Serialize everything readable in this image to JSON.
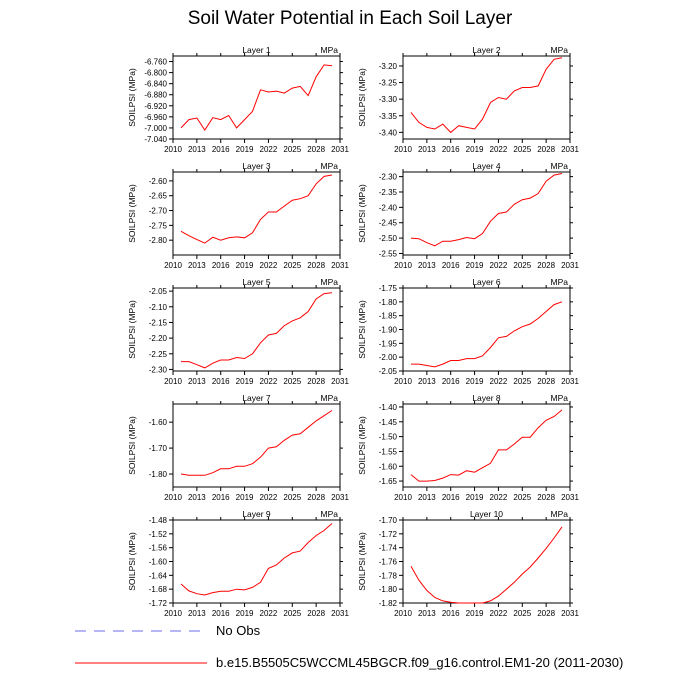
{
  "title": "Soil Water Potential in Each Soil Layer",
  "colors": {
    "model_line": "#ff0000",
    "noobs_line": "#8a8af0",
    "axis": "#000000"
  },
  "legend": {
    "no_obs": "No Obs",
    "model": "b.e15.B5505C5WCCML45BGCR.f09_g16.control.EM1-20 (2011-2030)"
  },
  "chart_data": [
    {
      "type": "line",
      "title": "Layer 1",
      "units": "MPa",
      "ylabel": "SOILPSI  (MPa)",
      "xlim": [
        2010,
        2031
      ],
      "ylim": [
        -7.04,
        -6.74
      ],
      "yticks": [
        -7.04,
        -7.0,
        -6.96,
        -6.92,
        -6.88,
        -6.84,
        -6.8,
        -6.76
      ],
      "ytick_labels": [
        "-7.040",
        "-7.000",
        "-6.960",
        "-6.920",
        "-6.880",
        "-6.840",
        "-6.800",
        "-6.760"
      ],
      "xticks": [
        2010,
        2013,
        2016,
        2019,
        2022,
        2025,
        2028,
        2031
      ],
      "xtick_labels": [
        "2010",
        "2013",
        "2016",
        "2019",
        "2022",
        "2025",
        "2028",
        "2031"
      ],
      "x": [
        2011,
        2012,
        2013,
        2014,
        2015,
        2016,
        2017,
        2018,
        2019,
        2020,
        2021,
        2022,
        2023,
        2024,
        2025,
        2026,
        2027,
        2028,
        2029,
        2030
      ],
      "y": [
        -7.0,
        -6.97,
        -6.964,
        -7.008,
        -6.963,
        -6.97,
        -6.955,
        -7.0,
        -6.97,
        -6.94,
        -6.862,
        -6.87,
        -6.867,
        -6.874,
        -6.856,
        -6.85,
        -6.883,
        -6.815,
        -6.772,
        -6.775
      ]
    },
    {
      "type": "line",
      "title": "Layer 2",
      "units": "MPa",
      "ylabel": "SOILPSI  (MPa)",
      "xlim": [
        2010,
        2031
      ],
      "ylim": [
        -3.42,
        -3.17
      ],
      "yticks": [
        -3.4,
        -3.35,
        -3.3,
        -3.25,
        -3.2
      ],
      "ytick_labels": [
        "-3.40",
        "-3.35",
        "-3.30",
        "-3.25",
        "-3.20"
      ],
      "xticks": [
        2010,
        2013,
        2016,
        2019,
        2022,
        2025,
        2028,
        2031
      ],
      "xtick_labels": [
        "2010",
        "2013",
        "2016",
        "2019",
        "2022",
        "2025",
        "2028",
        "2031"
      ],
      "x": [
        2011,
        2012,
        2013,
        2014,
        2015,
        2016,
        2017,
        2018,
        2019,
        2020,
        2021,
        2022,
        2023,
        2024,
        2025,
        2026,
        2027,
        2028,
        2029,
        2030
      ],
      "y": [
        -3.34,
        -3.37,
        -3.385,
        -3.39,
        -3.375,
        -3.4,
        -3.38,
        -3.385,
        -3.39,
        -3.36,
        -3.31,
        -3.295,
        -3.3,
        -3.275,
        -3.265,
        -3.265,
        -3.26,
        -3.21,
        -3.18,
        -3.175
      ]
    },
    {
      "type": "line",
      "title": "Layer 3",
      "units": "MPa",
      "ylabel": "SOILPSI  (MPa)",
      "xlim": [
        2010,
        2031
      ],
      "ylim": [
        -2.85,
        -2.57
      ],
      "yticks": [
        -2.8,
        -2.75,
        -2.7,
        -2.65,
        -2.6
      ],
      "ytick_labels": [
        "-2.80",
        "-2.75",
        "-2.70",
        "-2.65",
        "-2.60"
      ],
      "xticks": [
        2010,
        2013,
        2016,
        2019,
        2022,
        2025,
        2028,
        2031
      ],
      "xtick_labels": [
        "2010",
        "2013",
        "2016",
        "2019",
        "2022",
        "2025",
        "2028",
        "2031"
      ],
      "x": [
        2011,
        2012,
        2013,
        2014,
        2015,
        2016,
        2017,
        2018,
        2019,
        2020,
        2021,
        2022,
        2023,
        2024,
        2025,
        2026,
        2027,
        2028,
        2029,
        2030
      ],
      "y": [
        -2.77,
        -2.785,
        -2.798,
        -2.81,
        -2.79,
        -2.8,
        -2.792,
        -2.789,
        -2.792,
        -2.775,
        -2.73,
        -2.705,
        -2.705,
        -2.685,
        -2.665,
        -2.66,
        -2.65,
        -2.61,
        -2.585,
        -2.58
      ]
    },
    {
      "type": "line",
      "title": "Layer 4",
      "units": "MPa",
      "ylabel": "SOILPSI  (MPa)",
      "xlim": [
        2010,
        2031
      ],
      "ylim": [
        -2.555,
        -2.285
      ],
      "yticks": [
        -2.55,
        -2.5,
        -2.45,
        -2.4,
        -2.35,
        -2.3
      ],
      "ytick_labels": [
        "-2.55",
        "-2.50",
        "-2.45",
        "-2.40",
        "-2.35",
        "-2.30"
      ],
      "xticks": [
        2010,
        2013,
        2016,
        2019,
        2022,
        2025,
        2028,
        2031
      ],
      "xtick_labels": [
        "2010",
        "2013",
        "2016",
        "2019",
        "2022",
        "2025",
        "2028",
        "2031"
      ],
      "x": [
        2011,
        2012,
        2013,
        2014,
        2015,
        2016,
        2017,
        2018,
        2019,
        2020,
        2021,
        2022,
        2023,
        2024,
        2025,
        2026,
        2027,
        2028,
        2029,
        2030
      ],
      "y": [
        -2.5,
        -2.502,
        -2.515,
        -2.525,
        -2.51,
        -2.51,
        -2.505,
        -2.498,
        -2.502,
        -2.485,
        -2.445,
        -2.42,
        -2.415,
        -2.39,
        -2.375,
        -2.37,
        -2.355,
        -2.315,
        -2.295,
        -2.29
      ]
    },
    {
      "type": "line",
      "title": "Layer 5",
      "units": "MPa",
      "ylabel": "SOILPSI  (MPa)",
      "xlim": [
        2010,
        2031
      ],
      "ylim": [
        -2.305,
        -2.04
      ],
      "yticks": [
        -2.3,
        -2.25,
        -2.2,
        -2.15,
        -2.1,
        -2.05
      ],
      "ytick_labels": [
        "-2.30",
        "-2.25",
        "-2.20",
        "-2.15",
        "-2.10",
        "-2.05"
      ],
      "xticks": [
        2010,
        2013,
        2016,
        2019,
        2022,
        2025,
        2028,
        2031
      ],
      "xtick_labels": [
        "2010",
        "2013",
        "2016",
        "2019",
        "2022",
        "2025",
        "2028",
        "2031"
      ],
      "x": [
        2011,
        2012,
        2013,
        2014,
        2015,
        2016,
        2017,
        2018,
        2019,
        2020,
        2021,
        2022,
        2023,
        2024,
        2025,
        2026,
        2027,
        2028,
        2029,
        2030
      ],
      "y": [
        -2.275,
        -2.275,
        -2.285,
        -2.295,
        -2.28,
        -2.27,
        -2.27,
        -2.262,
        -2.265,
        -2.25,
        -2.215,
        -2.19,
        -2.185,
        -2.16,
        -2.145,
        -2.135,
        -2.115,
        -2.075,
        -2.058,
        -2.055
      ]
    },
    {
      "type": "line",
      "title": "Layer 6",
      "units": "MPa",
      "ylabel": "SOILPSI  (MPa)",
      "xlim": [
        2010,
        2031
      ],
      "ylim": [
        -2.05,
        -1.75
      ],
      "yticks": [
        -2.05,
        -2.0,
        -1.95,
        -1.9,
        -1.85,
        -1.8,
        -1.75
      ],
      "ytick_labels": [
        "-2.05",
        "-2.00",
        "-1.95",
        "-1.90",
        "-1.85",
        "-1.80",
        "-1.75"
      ],
      "xticks": [
        2010,
        2013,
        2016,
        2019,
        2022,
        2025,
        2028,
        2031
      ],
      "xtick_labels": [
        "2010",
        "2013",
        "2016",
        "2019",
        "2022",
        "2025",
        "2028",
        "2031"
      ],
      "x": [
        2011,
        2012,
        2013,
        2014,
        2015,
        2016,
        2017,
        2018,
        2019,
        2020,
        2021,
        2022,
        2023,
        2024,
        2025,
        2026,
        2027,
        2028,
        2029,
        2030
      ],
      "y": [
        -2.025,
        -2.025,
        -2.03,
        -2.035,
        -2.025,
        -2.012,
        -2.012,
        -2.005,
        -2.005,
        -1.995,
        -1.965,
        -1.93,
        -1.925,
        -1.905,
        -1.89,
        -1.88,
        -1.86,
        -1.835,
        -1.81,
        -1.8
      ]
    },
    {
      "type": "line",
      "title": "Layer 7",
      "units": "MPa",
      "ylabel": "SOILPSI  (MPa)",
      "xlim": [
        2010,
        2031
      ],
      "ylim": [
        -1.85,
        -1.53
      ],
      "yticks": [
        -1.8,
        -1.7,
        -1.6
      ],
      "ytick_labels": [
        "-1.80",
        "-1.70",
        "-1.60"
      ],
      "xticks": [
        2010,
        2013,
        2016,
        2019,
        2022,
        2025,
        2028,
        2031
      ],
      "xtick_labels": [
        "2010",
        "2013",
        "2016",
        "2019",
        "2022",
        "2025",
        "2028",
        "2031"
      ],
      "x": [
        2011,
        2012,
        2013,
        2014,
        2015,
        2016,
        2017,
        2018,
        2019,
        2020,
        2021,
        2022,
        2023,
        2024,
        2025,
        2026,
        2027,
        2028,
        2029,
        2030
      ],
      "y": [
        -1.8,
        -1.805,
        -1.805,
        -1.805,
        -1.795,
        -1.78,
        -1.78,
        -1.77,
        -1.77,
        -1.76,
        -1.735,
        -1.7,
        -1.695,
        -1.67,
        -1.65,
        -1.645,
        -1.62,
        -1.595,
        -1.575,
        -1.555
      ]
    },
    {
      "type": "line",
      "title": "Layer 8",
      "units": "MPa",
      "ylabel": "SOILPSI  (MPa)",
      "xlim": [
        2010,
        2031
      ],
      "ylim": [
        -1.67,
        -1.39
      ],
      "yticks": [
        -1.65,
        -1.6,
        -1.55,
        -1.5,
        -1.45,
        -1.4
      ],
      "ytick_labels": [
        "-1.65",
        "-1.60",
        "-1.55",
        "-1.50",
        "-1.45",
        "-1.40"
      ],
      "xticks": [
        2010,
        2013,
        2016,
        2019,
        2022,
        2025,
        2028,
        2031
      ],
      "xtick_labels": [
        "2010",
        "2013",
        "2016",
        "2019",
        "2022",
        "2025",
        "2028",
        "2031"
      ],
      "x": [
        2011,
        2012,
        2013,
        2014,
        2015,
        2016,
        2017,
        2018,
        2019,
        2020,
        2021,
        2022,
        2023,
        2024,
        2025,
        2026,
        2027,
        2028,
        2029,
        2030
      ],
      "y": [
        -1.628,
        -1.65,
        -1.65,
        -1.648,
        -1.64,
        -1.628,
        -1.63,
        -1.615,
        -1.62,
        -1.605,
        -1.59,
        -1.545,
        -1.545,
        -1.525,
        -1.502,
        -1.502,
        -1.47,
        -1.445,
        -1.432,
        -1.41
      ]
    },
    {
      "type": "line",
      "title": "Layer 9",
      "units": "MPa",
      "ylabel": "SOILPSI  (MPa)",
      "xlim": [
        2010,
        2031
      ],
      "ylim": [
        -1.72,
        -1.48
      ],
      "yticks": [
        -1.72,
        -1.68,
        -1.64,
        -1.6,
        -1.56,
        -1.52,
        -1.48
      ],
      "ytick_labels": [
        "-1.72",
        "-1.68",
        "-1.64",
        "-1.60",
        "-1.56",
        "-1.52",
        "-1.48"
      ],
      "xticks": [
        2010,
        2013,
        2016,
        2019,
        2022,
        2025,
        2028,
        2031
      ],
      "xtick_labels": [
        "2010",
        "2013",
        "2016",
        "2019",
        "2022",
        "2025",
        "2028",
        "2031"
      ],
      "x": [
        2011,
        2012,
        2013,
        2014,
        2015,
        2016,
        2017,
        2018,
        2019,
        2020,
        2021,
        2022,
        2023,
        2024,
        2025,
        2026,
        2027,
        2028,
        2029,
        2030
      ],
      "y": [
        -1.665,
        -1.685,
        -1.693,
        -1.697,
        -1.69,
        -1.686,
        -1.686,
        -1.68,
        -1.682,
        -1.675,
        -1.66,
        -1.62,
        -1.61,
        -1.59,
        -1.575,
        -1.57,
        -1.545,
        -1.525,
        -1.51,
        -1.49
      ]
    },
    {
      "type": "line",
      "title": "Layer 10",
      "units": "MPa",
      "ylabel": "SOILPSI  (MPa)",
      "xlim": [
        2010,
        2031
      ],
      "ylim": [
        -1.82,
        -1.7
      ],
      "yticks": [
        -1.82,
        -1.8,
        -1.78,
        -1.76,
        -1.74,
        -1.72,
        -1.7
      ],
      "ytick_labels": [
        "-1.82",
        "-1.80",
        "-1.78",
        "-1.76",
        "-1.74",
        "-1.72",
        "-1.70"
      ],
      "xticks": [
        2010,
        2013,
        2016,
        2019,
        2022,
        2025,
        2028,
        2031
      ],
      "xtick_labels": [
        "2010",
        "2013",
        "2016",
        "2019",
        "2022",
        "2025",
        "2028",
        "2031"
      ],
      "x": [
        2011,
        2012,
        2013,
        2014,
        2015,
        2016,
        2017,
        2018,
        2019,
        2020,
        2021,
        2022,
        2023,
        2024,
        2025,
        2026,
        2027,
        2028,
        2029,
        2030
      ],
      "y": [
        -1.767,
        -1.787,
        -1.802,
        -1.812,
        -1.817,
        -1.819,
        -1.82,
        -1.82,
        -1.82,
        -1.82,
        -1.817,
        -1.81,
        -1.8,
        -1.79,
        -1.778,
        -1.768,
        -1.755,
        -1.741,
        -1.726,
        -1.71
      ]
    }
  ]
}
